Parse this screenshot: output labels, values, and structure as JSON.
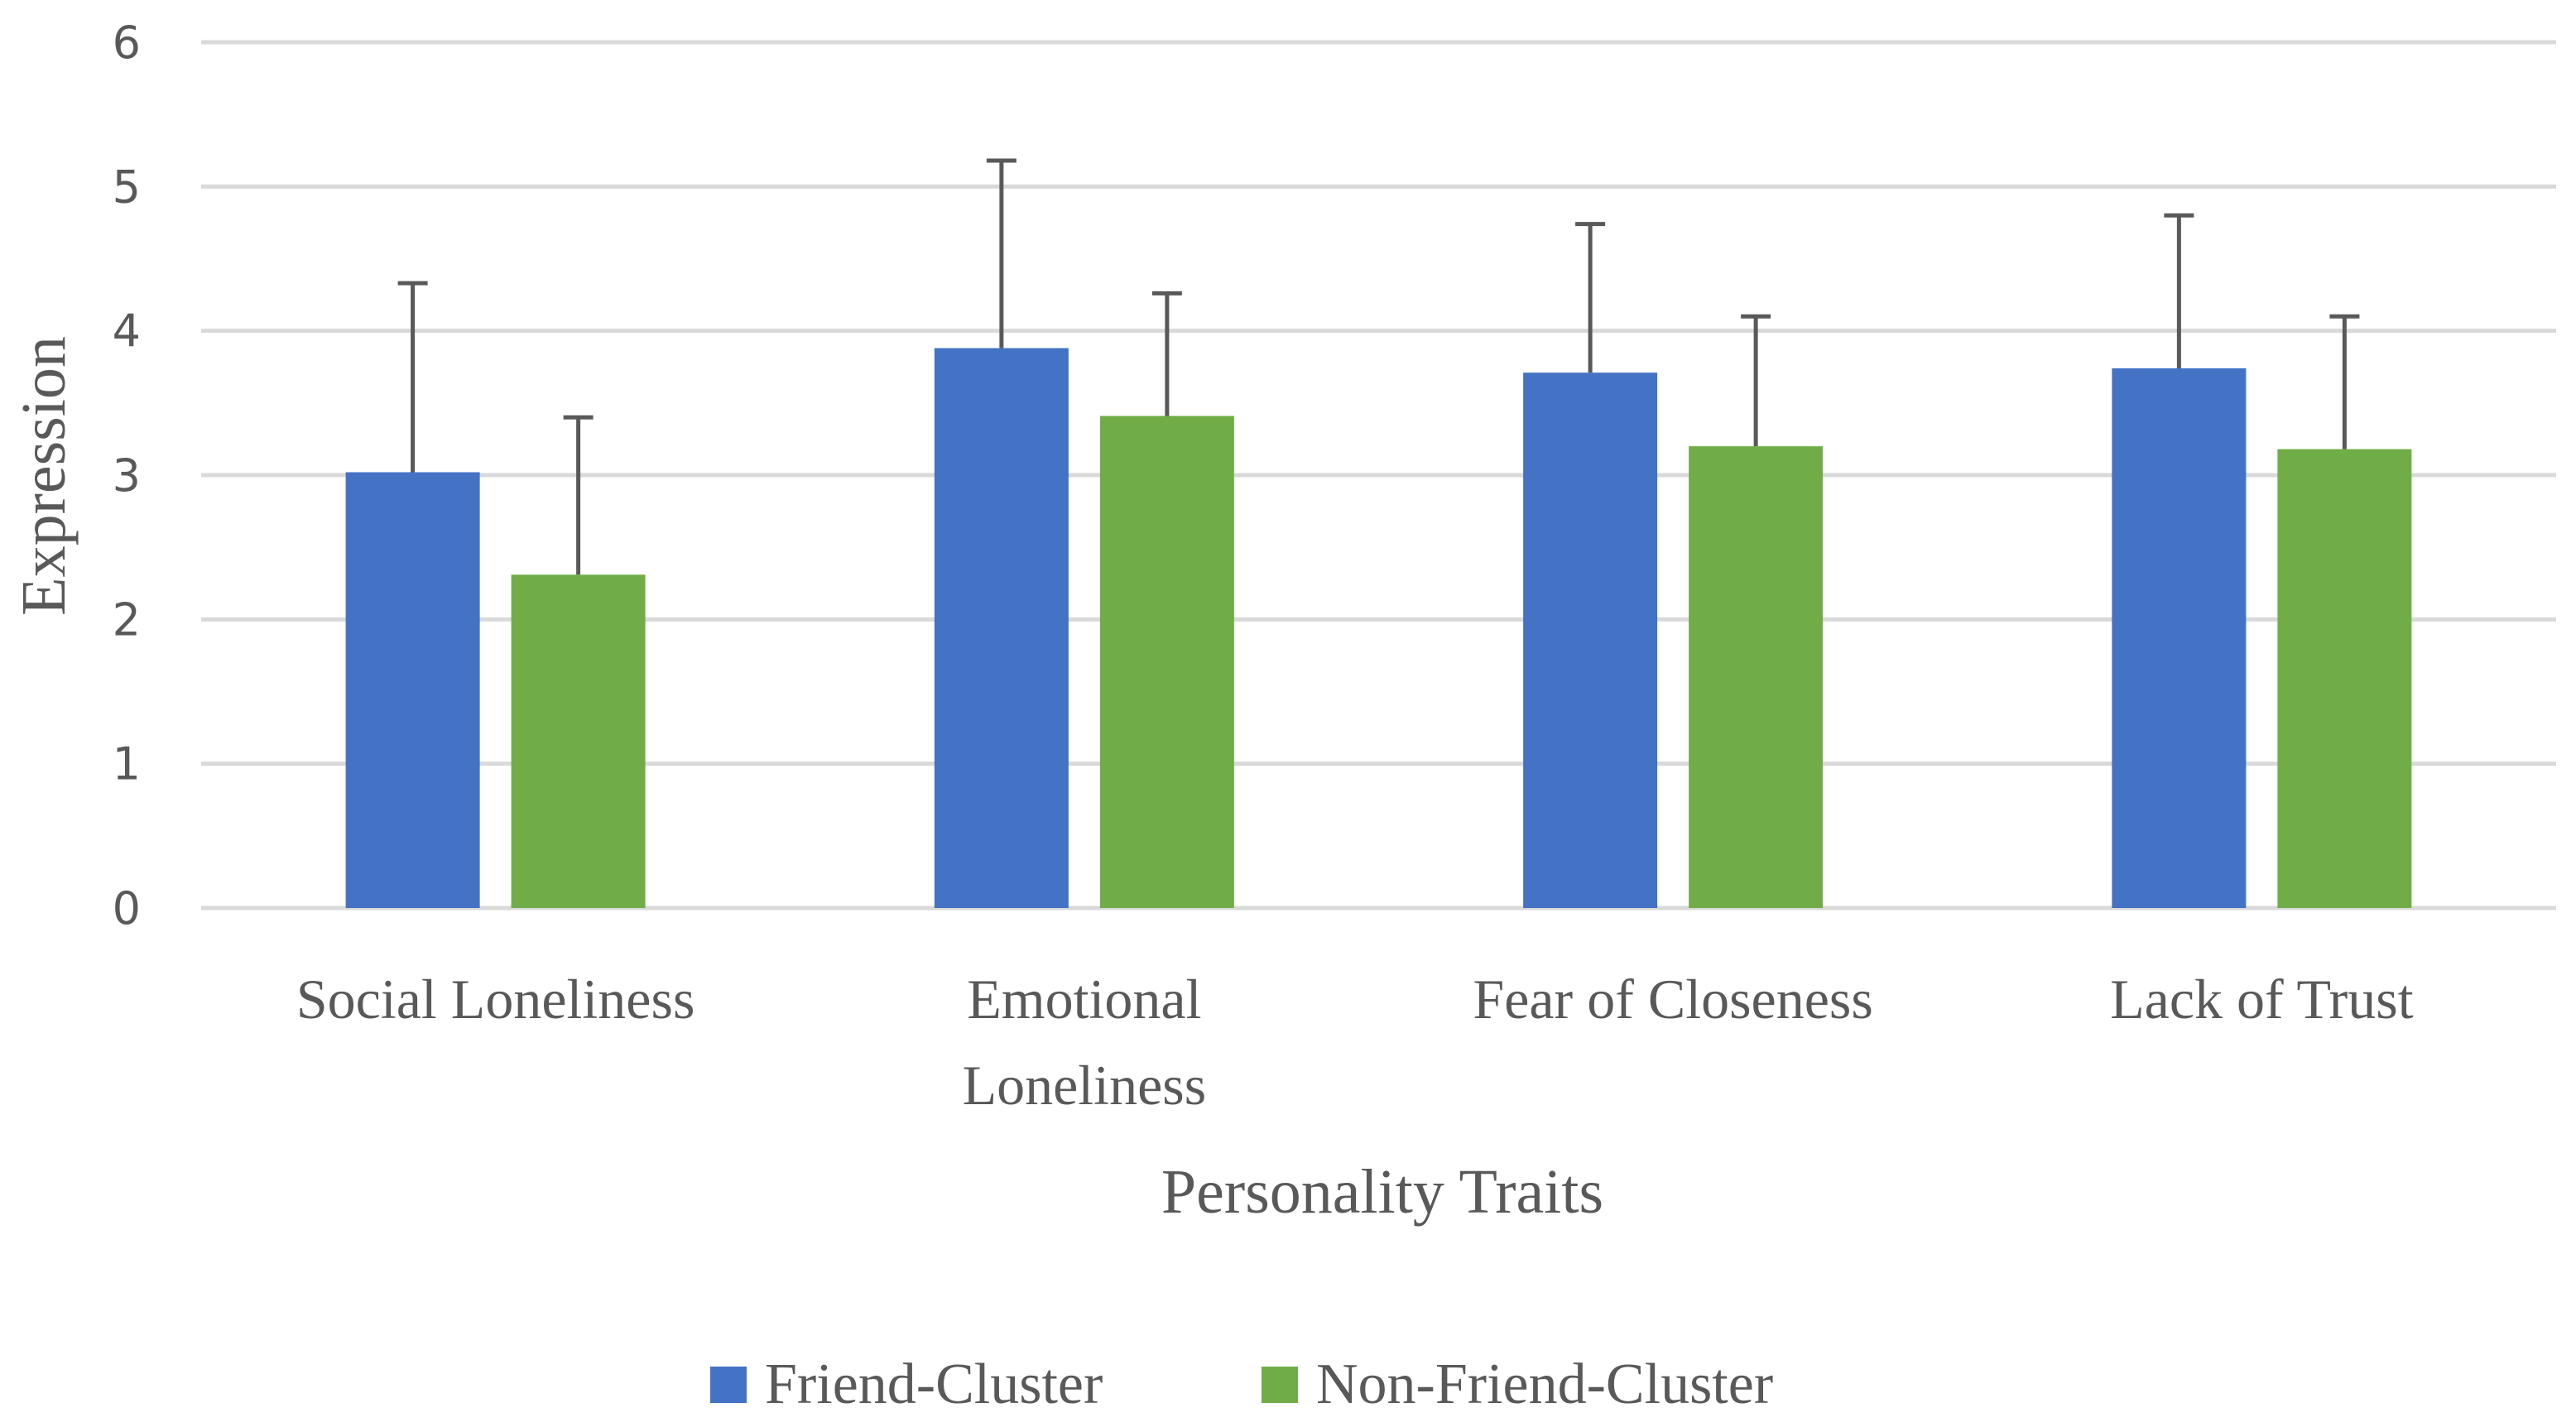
{
  "chart_data": {
    "type": "bar",
    "title": "",
    "xlabel": "Personality Traits",
    "ylabel": "Expression",
    "ylim": [
      0,
      6
    ],
    "yticks": [
      0,
      1,
      2,
      3,
      4,
      5,
      6
    ],
    "grid": true,
    "legend_position": "bottom",
    "categories": [
      [
        "Social Loneliness"
      ],
      [
        "Emotional",
        "Loneliness"
      ],
      [
        "Fear of Closeness"
      ],
      [
        "Lack of Trust"
      ]
    ],
    "series": [
      {
        "name": "Friend-Cluster",
        "color": "#4472c4",
        "values": [
          3.02,
          3.88,
          3.71,
          3.74
        ],
        "error_plus": [
          1.31,
          1.3,
          1.03,
          1.06
        ]
      },
      {
        "name": "Non-Friend-Cluster",
        "color": "#70ad47",
        "values": [
          2.31,
          3.41,
          3.2,
          3.18
        ],
        "error_plus": [
          1.09,
          0.85,
          0.9,
          0.92
        ]
      }
    ]
  }
}
